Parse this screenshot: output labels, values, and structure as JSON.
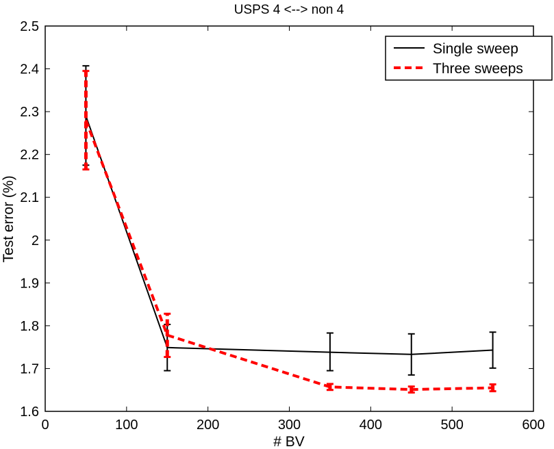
{
  "chart_data": {
    "type": "line",
    "title": "USPS  4 <--> non 4",
    "xlabel": "# BV",
    "ylabel": "Test error (%)",
    "xlim": [
      0,
      600
    ],
    "ylim": [
      1.6,
      2.5
    ],
    "xticks": [
      0,
      100,
      200,
      300,
      400,
      500,
      600
    ],
    "yticks": [
      1.6,
      1.7,
      1.8,
      1.9,
      2.0,
      2.1,
      2.2,
      2.3,
      2.4,
      2.5
    ],
    "xtick_labels": [
      "0",
      "100",
      "200",
      "300",
      "400",
      "500",
      "600"
    ],
    "ytick_labels": [
      "1.6",
      "1.7",
      "1.8",
      "1.9",
      "2",
      "2.1",
      "2.2",
      "2.3",
      "2.4",
      "2.5"
    ],
    "grid": false,
    "legend_position": "top-right",
    "x": [
      50,
      150,
      350,
      450,
      550
    ],
    "series": [
      {
        "name": "Single sweep",
        "color": "#000000",
        "style": "solid",
        "values": [
          2.29,
          1.749,
          1.738,
          1.733,
          1.743
        ],
        "err_low": [
          2.175,
          1.695,
          1.695,
          1.685,
          1.701
        ],
        "err_high": [
          2.407,
          1.803,
          1.783,
          1.781,
          1.785
        ]
      },
      {
        "name": "Three sweeps",
        "color": "#ff0000",
        "style": "dashed",
        "values": [
          2.28,
          1.778,
          1.657,
          1.651,
          1.655
        ],
        "err_low": [
          2.165,
          1.727,
          1.65,
          1.644,
          1.647
        ],
        "err_high": [
          2.395,
          1.828,
          1.664,
          1.658,
          1.663
        ]
      }
    ]
  }
}
